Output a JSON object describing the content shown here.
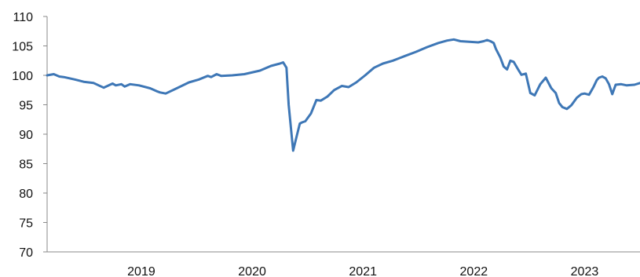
{
  "chart_data": {
    "type": "line",
    "title": "",
    "xlabel": "",
    "ylabel": "",
    "ylim": [
      70,
      110
    ],
    "yticks": [
      70,
      75,
      80,
      85,
      90,
      95,
      100,
      105,
      110
    ],
    "xticks": [
      {
        "label": "2019",
        "x": 2019.0
      },
      {
        "label": "2020",
        "x": 2020.0
      },
      {
        "label": "2021",
        "x": 2021.0
      },
      {
        "label": "2022",
        "x": 2022.0
      },
      {
        "label": "2023",
        "x": 2023.0
      }
    ],
    "xlim": [
      2018.15,
      2023.5
    ],
    "grid": false,
    "legend": "none",
    "colors": {
      "series": "#3e77b6",
      "axis": "#8a8a8a"
    },
    "series": [
      {
        "x": [
          2018.15,
          2018.21,
          2018.26,
          2018.3,
          2018.4,
          2018.48,
          2018.57,
          2018.66,
          2018.74,
          2018.77,
          2018.82,
          2018.85,
          2018.9,
          2018.98,
          2019.08,
          2019.14,
          2019.17,
          2019.22,
          2019.32,
          2019.43,
          2019.52,
          2019.6,
          2019.63,
          2019.68,
          2019.72,
          2019.82,
          2019.93,
          2020.07,
          2020.17,
          2020.25,
          2020.28,
          2020.31,
          2020.33,
          2020.37,
          2020.4,
          2020.43,
          2020.45,
          2020.48,
          2020.53,
          2020.58,
          2020.62,
          2020.68,
          2020.74,
          2020.81,
          2020.87,
          2020.94,
          2021.02,
          2021.1,
          2021.18,
          2021.27,
          2021.38,
          2021.48,
          2021.58,
          2021.68,
          2021.76,
          2021.82,
          2021.88,
          2021.96,
          2022.04,
          2022.09,
          2022.12,
          2022.15,
          2022.18,
          2022.2,
          2022.24,
          2022.27,
          2022.3,
          2022.33,
          2022.36,
          2022.4,
          2022.43,
          2022.47,
          2022.51,
          2022.55,
          2022.6,
          2022.65,
          2022.7,
          2022.74,
          2022.77,
          2022.8,
          2022.84,
          2022.88,
          2022.93,
          2022.97,
          2023.0,
          2023.04,
          2023.08,
          2023.11,
          2023.13,
          2023.16,
          2023.19,
          2023.22,
          2023.25,
          2023.28,
          2023.33,
          2023.38,
          2023.45,
          2023.5
        ],
        "values": [
          100.0,
          100.2,
          99.8,
          99.7,
          99.3,
          98.9,
          98.7,
          97.9,
          98.6,
          98.3,
          98.5,
          98.1,
          98.5,
          98.3,
          97.8,
          97.3,
          97.1,
          96.9,
          97.8,
          98.8,
          99.3,
          99.9,
          99.7,
          100.2,
          99.9,
          100.0,
          100.2,
          100.8,
          101.6,
          102.0,
          102.2,
          101.3,
          95.0,
          87.2,
          89.5,
          91.8,
          92.0,
          92.2,
          93.5,
          95.8,
          95.7,
          96.4,
          97.5,
          98.2,
          98.0,
          98.8,
          100.0,
          101.3,
          102.0,
          102.5,
          103.3,
          104.0,
          104.8,
          105.5,
          105.9,
          106.1,
          105.8,
          105.7,
          105.6,
          105.8,
          106.0,
          105.8,
          105.5,
          104.5,
          103.0,
          101.5,
          101.0,
          102.5,
          102.3,
          101.0,
          100.1,
          100.3,
          97.0,
          96.6,
          98.5,
          99.6,
          97.8,
          97.0,
          95.3,
          94.6,
          94.3,
          94.9,
          96.2,
          96.8,
          96.9,
          96.7,
          98.0,
          99.2,
          99.6,
          99.8,
          99.5,
          98.5,
          96.8,
          98.4,
          98.5,
          98.3,
          98.4,
          98.7
        ]
      }
    ]
  }
}
